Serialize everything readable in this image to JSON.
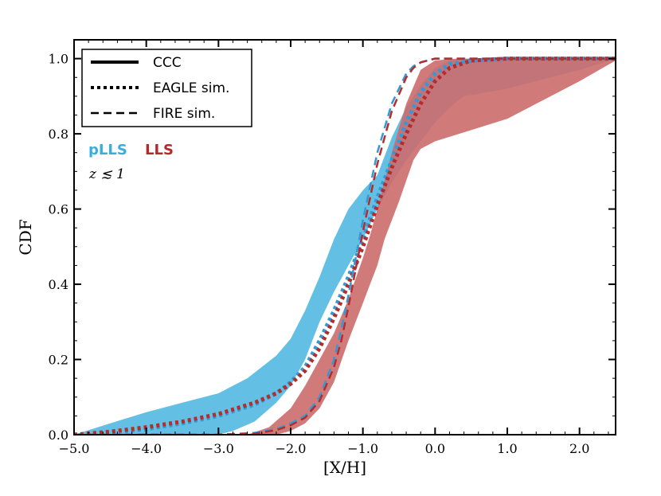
{
  "chart_data": {
    "type": "area",
    "xlabel": "[X/H]",
    "ylabel": "CDF",
    "xlim": [
      -5.0,
      2.5
    ],
    "ylim": [
      0.0,
      1.05
    ],
    "x_ticks": [
      -5.0,
      -4.0,
      -3.0,
      -2.0,
      -1.0,
      0.0,
      1.0,
      2.0
    ],
    "x_tick_labels": [
      "−5.0",
      "−4.0",
      "−3.0",
      "−2.0",
      "−1.0",
      "0.0",
      "1.0",
      "2.0"
    ],
    "y_ticks": [
      0.0,
      0.2,
      0.4,
      0.6,
      0.8,
      1.0
    ],
    "y_tick_labels": [
      "0.0",
      "0.2",
      "0.4",
      "0.6",
      "0.8",
      "1.0"
    ],
    "grid": false,
    "legend": {
      "placement": "top-left",
      "entries": [
        {
          "label": "CCC",
          "style": "solid"
        },
        {
          "label": "EAGLE sim.",
          "style": "dotted"
        },
        {
          "label": "FIRE sim.",
          "style": "dashed"
        }
      ]
    },
    "annotations": {
      "series_labels": [
        {
          "text": "pLLS",
          "color": "#39aedc"
        },
        {
          "text": "LLS",
          "color": "#b8282b"
        }
      ],
      "redshift": "z ≲ 1"
    },
    "colors": {
      "plls_band": "#5bbde3",
      "lls_band": "#cc6b6b",
      "plls_line": "#3399d6",
      "lls_line": "#b52c2c"
    },
    "bands": [
      {
        "name": "pLLS",
        "label": "CCC",
        "color_key": "plls_band",
        "upper": [
          [
            -5.0,
            0.0
          ],
          [
            -4.5,
            0.03
          ],
          [
            -4.0,
            0.06
          ],
          [
            -3.5,
            0.085
          ],
          [
            -3.0,
            0.11
          ],
          [
            -2.6,
            0.15
          ],
          [
            -2.2,
            0.21
          ],
          [
            -2.0,
            0.255
          ],
          [
            -1.8,
            0.33
          ],
          [
            -1.6,
            0.42
          ],
          [
            -1.4,
            0.52
          ],
          [
            -1.2,
            0.6
          ],
          [
            -1.0,
            0.65
          ],
          [
            -0.9,
            0.67
          ],
          [
            -0.8,
            0.69
          ],
          [
            -0.6,
            0.79
          ],
          [
            -0.4,
            0.87
          ],
          [
            -0.2,
            0.93
          ],
          [
            0.0,
            0.975
          ],
          [
            0.2,
            0.995
          ],
          [
            0.5,
            1.0
          ],
          [
            2.5,
            1.0
          ]
        ],
        "lower": [
          [
            -5.0,
            0.0
          ],
          [
            -4.0,
            0.0
          ],
          [
            -3.0,
            0.0
          ],
          [
            -2.8,
            0.01
          ],
          [
            -2.5,
            0.035
          ],
          [
            -2.2,
            0.085
          ],
          [
            -2.0,
            0.13
          ],
          [
            -1.8,
            0.2
          ],
          [
            -1.6,
            0.3
          ],
          [
            -1.4,
            0.38
          ],
          [
            -1.2,
            0.45
          ],
          [
            -1.0,
            0.52
          ],
          [
            -0.8,
            0.6
          ],
          [
            -0.6,
            0.67
          ],
          [
            -0.4,
            0.73
          ],
          [
            -0.2,
            0.78
          ],
          [
            0.0,
            0.83
          ],
          [
            0.2,
            0.87
          ],
          [
            0.4,
            0.9
          ],
          [
            1.0,
            0.92
          ],
          [
            2.0,
            0.97
          ],
          [
            2.5,
            1.0
          ]
        ]
      },
      {
        "name": "LLS",
        "label": "CCC",
        "color_key": "lls_band",
        "upper": [
          [
            -2.6,
            0.0
          ],
          [
            -2.3,
            0.02
          ],
          [
            -2.0,
            0.07
          ],
          [
            -1.8,
            0.13
          ],
          [
            -1.6,
            0.2
          ],
          [
            -1.4,
            0.27
          ],
          [
            -1.2,
            0.36
          ],
          [
            -1.0,
            0.47
          ],
          [
            -0.9,
            0.53
          ],
          [
            -0.8,
            0.6
          ],
          [
            -0.6,
            0.75
          ],
          [
            -0.4,
            0.88
          ],
          [
            -0.2,
            0.97
          ],
          [
            0.0,
            0.995
          ],
          [
            0.3,
            1.0
          ],
          [
            2.5,
            1.0
          ]
        ],
        "lower": [
          [
            -5.0,
            0.0
          ],
          [
            -2.6,
            0.0
          ],
          [
            -2.2,
            0.0
          ],
          [
            -2.0,
            0.01
          ],
          [
            -1.8,
            0.03
          ],
          [
            -1.6,
            0.07
          ],
          [
            -1.4,
            0.14
          ],
          [
            -1.2,
            0.25
          ],
          [
            -1.0,
            0.35
          ],
          [
            -0.9,
            0.4
          ],
          [
            -0.8,
            0.45
          ],
          [
            -0.7,
            0.52
          ],
          [
            -0.5,
            0.62
          ],
          [
            -0.3,
            0.73
          ],
          [
            -0.2,
            0.76
          ],
          [
            0.0,
            0.78
          ],
          [
            0.5,
            0.81
          ],
          [
            1.0,
            0.84
          ],
          [
            1.5,
            0.89
          ],
          [
            2.0,
            0.94
          ],
          [
            2.5,
            0.995
          ]
        ]
      }
    ],
    "series": [
      {
        "name": "pLLS",
        "label": "EAGLE sim.",
        "style": "dotted",
        "color_key": "plls_line",
        "x": [
          -5.0,
          -4.5,
          -4.0,
          -3.5,
          -3.0,
          -2.5,
          -2.2,
          -2.0,
          -1.8,
          -1.6,
          -1.4,
          -1.2,
          -1.0,
          -0.8,
          -0.6,
          -0.4,
          -0.2,
          0.0,
          0.2,
          0.5,
          1.0,
          2.0,
          2.5
        ],
        "y": [
          0.0,
          0.005,
          0.015,
          0.03,
          0.05,
          0.08,
          0.11,
          0.14,
          0.18,
          0.25,
          0.33,
          0.42,
          0.52,
          0.63,
          0.73,
          0.83,
          0.91,
          0.96,
          0.985,
          0.995,
          1.0,
          1.0,
          1.0
        ]
      },
      {
        "name": "LLS",
        "label": "EAGLE sim.",
        "style": "dotted",
        "color_key": "lls_line",
        "x": [
          -5.0,
          -4.5,
          -4.0,
          -3.5,
          -3.0,
          -2.5,
          -2.2,
          -2.0,
          -1.8,
          -1.6,
          -1.4,
          -1.2,
          -1.0,
          -0.8,
          -0.6,
          -0.4,
          -0.2,
          0.0,
          0.2,
          0.5,
          1.0,
          2.0,
          2.5
        ],
        "y": [
          0.0,
          0.008,
          0.02,
          0.035,
          0.055,
          0.085,
          0.11,
          0.135,
          0.17,
          0.23,
          0.31,
          0.4,
          0.5,
          0.61,
          0.71,
          0.8,
          0.88,
          0.94,
          0.975,
          0.995,
          1.0,
          1.0,
          1.0
        ]
      },
      {
        "name": "pLLS",
        "label": "FIRE sim.",
        "style": "dashed",
        "color_key": "plls_line",
        "x": [
          -5.0,
          -3.0,
          -2.5,
          -2.2,
          -2.0,
          -1.8,
          -1.6,
          -1.4,
          -1.3,
          -1.2,
          -1.1,
          -1.0,
          -0.9,
          -0.8,
          -0.6,
          -0.4,
          -0.3,
          -0.2,
          0.0,
          0.5,
          2.5
        ],
        "y": [
          0.0,
          0.0,
          0.005,
          0.015,
          0.03,
          0.05,
          0.1,
          0.2,
          0.28,
          0.37,
          0.47,
          0.57,
          0.66,
          0.75,
          0.88,
          0.96,
          0.98,
          0.99,
          1.0,
          1.0,
          1.0
        ]
      },
      {
        "name": "LLS",
        "label": "FIRE sim.",
        "style": "dashed",
        "color_key": "lls_line",
        "x": [
          -5.0,
          -3.0,
          -2.5,
          -2.2,
          -2.0,
          -1.8,
          -1.6,
          -1.4,
          -1.3,
          -1.2,
          -1.1,
          -1.0,
          -0.9,
          -0.8,
          -0.6,
          -0.4,
          -0.3,
          -0.2,
          0.0,
          0.5,
          2.5
        ],
        "y": [
          0.0,
          0.0,
          0.003,
          0.012,
          0.025,
          0.045,
          0.09,
          0.18,
          0.25,
          0.34,
          0.44,
          0.54,
          0.63,
          0.72,
          0.86,
          0.95,
          0.975,
          0.99,
          1.0,
          1.0,
          1.0
        ]
      }
    ]
  }
}
